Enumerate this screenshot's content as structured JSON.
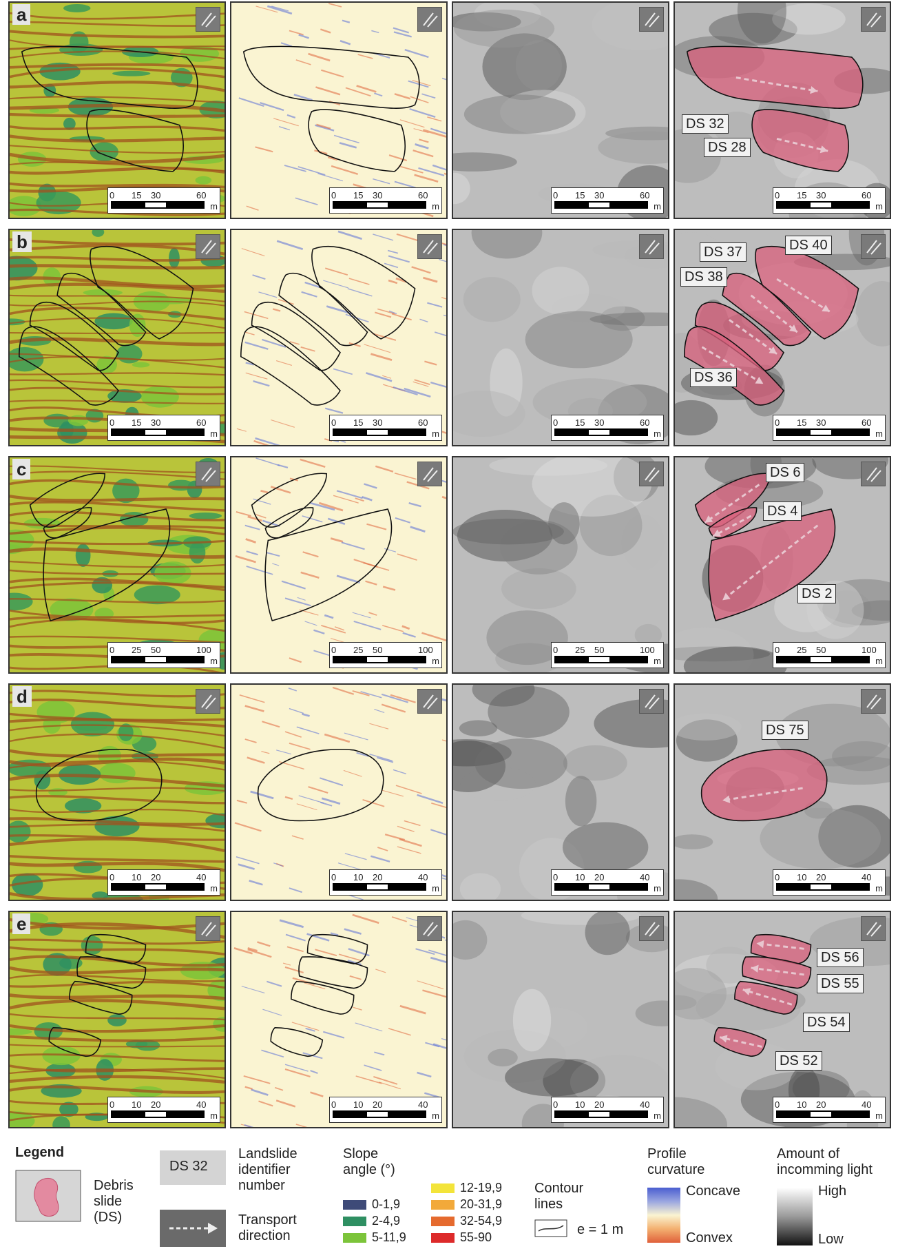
{
  "rows": [
    {
      "letter": "a",
      "scale_ticks": [
        "0",
        "15",
        "30",
        "60"
      ],
      "unit": "m",
      "labels": [
        "DS 32",
        "DS 28"
      ]
    },
    {
      "letter": "b",
      "scale_ticks": [
        "0",
        "15",
        "30",
        "60"
      ],
      "unit": "m",
      "labels": [
        "DS 37",
        "DS 40",
        "DS 38",
        "DS 36"
      ]
    },
    {
      "letter": "c",
      "scale_ticks": [
        "0",
        "25",
        "50",
        "100"
      ],
      "unit": "m",
      "labels": [
        "DS 6",
        "DS 4",
        "DS 2"
      ]
    },
    {
      "letter": "d",
      "scale_ticks": [
        "0",
        "10",
        "20",
        "40"
      ],
      "unit": "m",
      "labels": [
        "DS 75"
      ]
    },
    {
      "letter": "e",
      "scale_ticks": [
        "0",
        "10",
        "20",
        "40"
      ],
      "unit": "m",
      "labels": [
        "DS 56",
        "DS 55",
        "DS 54",
        "DS 52"
      ]
    }
  ],
  "colors": {
    "debris": "#d9607c",
    "slope_bg": "#b9c43a",
    "curv_bg": "#faf4d2",
    "hill_bg": "#bdbdbd"
  },
  "legend": {
    "title": "Legend",
    "debris": "Debris slide (DS)",
    "id_sample": "DS 32",
    "id_text": "Landslide identifier number",
    "transport": "Transport direction",
    "slope_title": "Slope angle (°)",
    "slope_classes": [
      {
        "label": "0-1,9",
        "color": "#3e4a78"
      },
      {
        "label": "2-4,9",
        "color": "#2e8f62"
      },
      {
        "label": "5-11,9",
        "color": "#7cc43a"
      },
      {
        "label": "12-19,9",
        "color": "#f3e43a"
      },
      {
        "label": "20-31,9",
        "color": "#f2a93a"
      },
      {
        "label": "32-54,9",
        "color": "#e56a2e"
      },
      {
        "label": "55-90",
        "color": "#dd2a2a"
      }
    ],
    "contour_title": "Contour lines",
    "contour_value": "e = 1 m",
    "curv_title": "Profile curvature",
    "curv_concave": "Concave",
    "curv_convex": "Convex",
    "light_title": "Amount of incomming light",
    "light_high": "High",
    "light_low": "Low"
  }
}
